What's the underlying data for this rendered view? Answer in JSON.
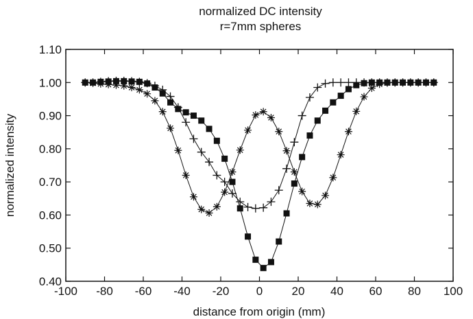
{
  "chart_data": {
    "type": "line",
    "title": "normalized DC intensity",
    "subtitle": "r=7mm spheres",
    "xlabel": "distance from origin (mm)",
    "ylabel": "normalized intensity",
    "xlim": [
      -100,
      100
    ],
    "ylim": [
      0.4,
      1.1
    ],
    "x_ticks": [
      -100,
      -80,
      -60,
      -40,
      -20,
      0,
      20,
      40,
      60,
      80,
      100
    ],
    "y_ticks": [
      0.4,
      0.5,
      0.6,
      0.7,
      0.8,
      0.9,
      1.0,
      1.1
    ],
    "x_tick_labels": [
      "-100",
      "-80",
      "-60",
      "-40",
      "-20",
      "0",
      "20",
      "40",
      "60",
      "80",
      "100"
    ],
    "y_tick_labels": [
      "0.40",
      "0.50",
      "0.60",
      "0.70",
      "0.80",
      "0.90",
      "1.00",
      "1.10"
    ],
    "grid": false,
    "legend": "none",
    "x": [
      -90,
      -86,
      -82,
      -78,
      -74,
      -70,
      -66,
      -62,
      -58,
      -54,
      -50,
      -46,
      -42,
      -38,
      -34,
      -30,
      -26,
      -22,
      -18,
      -14,
      -10,
      -6,
      -2,
      2,
      6,
      10,
      14,
      18,
      22,
      26,
      30,
      34,
      38,
      42,
      46,
      50,
      54,
      58,
      62,
      66,
      70,
      74,
      78,
      82,
      86,
      90
    ],
    "series": [
      {
        "marker": "asterisk",
        "color": "#111111",
        "values": [
          1.0,
          0.998,
          0.996,
          0.994,
          0.992,
          0.99,
          0.985,
          0.978,
          0.966,
          0.945,
          0.912,
          0.862,
          0.795,
          0.72,
          0.655,
          0.617,
          0.606,
          0.625,
          0.669,
          0.73,
          0.796,
          0.856,
          0.902,
          0.912,
          0.894,
          0.852,
          0.794,
          0.73,
          0.671,
          0.635,
          0.632,
          0.659,
          0.713,
          0.782,
          0.852,
          0.913,
          0.957,
          0.983,
          0.995,
          0.999,
          1.0,
          1.0,
          1.0,
          1.0,
          1.0,
          1.0
        ]
      },
      {
        "marker": "square",
        "color": "#111111",
        "values": [
          1.0,
          1.0,
          1.002,
          1.003,
          1.004,
          1.004,
          1.003,
          1.002,
          0.997,
          0.985,
          0.967,
          0.94,
          0.92,
          0.91,
          0.9,
          0.885,
          0.86,
          0.824,
          0.77,
          0.7,
          0.62,
          0.535,
          0.465,
          0.44,
          0.458,
          0.52,
          0.605,
          0.695,
          0.775,
          0.84,
          0.885,
          0.915,
          0.94,
          0.96,
          0.98,
          0.992,
          0.998,
          1.0,
          1.0,
          1.0,
          1.0,
          1.0,
          1.0,
          1.0,
          1.0,
          1.0
        ]
      },
      {
        "marker": "plus",
        "color": "#111111",
        "values": [
          1.0,
          1.0,
          1.002,
          1.004,
          1.005,
          1.005,
          1.004,
          1.002,
          0.998,
          0.99,
          0.978,
          0.958,
          0.925,
          0.88,
          0.83,
          0.79,
          0.76,
          0.72,
          0.7,
          0.665,
          0.64,
          0.624,
          0.62,
          0.622,
          0.64,
          0.675,
          0.74,
          0.82,
          0.9,
          0.955,
          0.985,
          0.997,
          1.0,
          1.0,
          1.0,
          1.0,
          1.0,
          1.0,
          1.0,
          1.0,
          1.0,
          1.0,
          1.0,
          1.0,
          1.0,
          1.0
        ]
      }
    ]
  }
}
